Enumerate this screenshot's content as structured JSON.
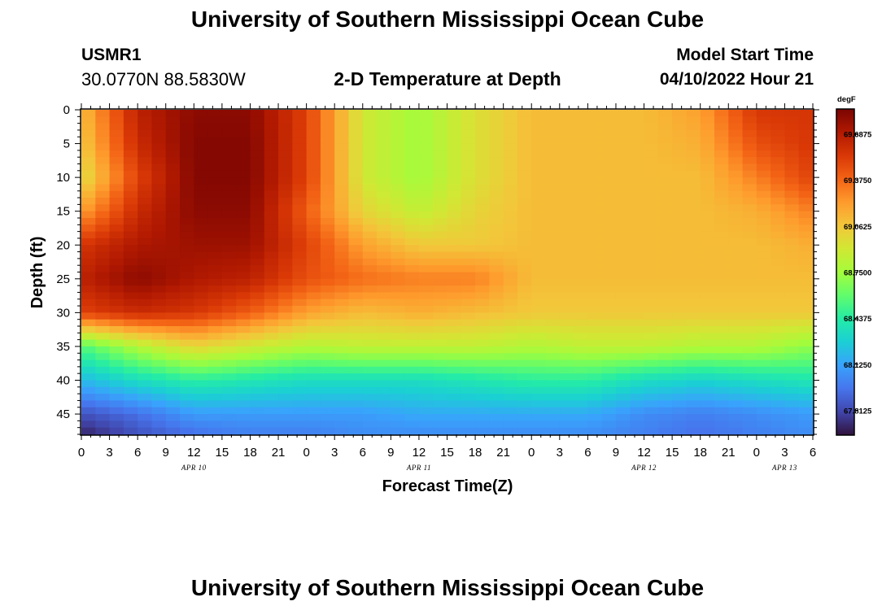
{
  "header": {
    "title": "University of Southern Mississippi Ocean Cube",
    "station": "USMR1",
    "coordinates": "30.0770N  88.5830W",
    "subtitle": "2-D Temperature at Depth",
    "start_label": "Model Start Time",
    "start_value": "04/10/2022 Hour 21"
  },
  "footer": {
    "title": "University of Southern Mississippi Ocean Cube"
  },
  "colors": {
    "background": "#ffffff",
    "text": "#000000"
  },
  "chart_data": {
    "type": "heatmap",
    "title": "2-D Temperature at Depth",
    "xlabel": "Forecast Time(Z)",
    "ylabel": "Depth (ft)",
    "x_unit": "hours since APR 10 00Z",
    "xlim": [
      0,
      78
    ],
    "ylim": [
      0,
      48
    ],
    "y_inverted": true,
    "x_ticks": [
      0,
      3,
      6,
      9,
      12,
      15,
      18,
      21,
      24,
      27,
      30,
      33,
      36,
      39,
      42,
      45,
      48,
      51,
      54,
      57,
      60,
      63,
      66,
      69,
      72,
      75,
      78
    ],
    "x_tick_labels": [
      "0",
      "3",
      "6",
      "9",
      "12",
      "15",
      "18",
      "21",
      "0",
      "3",
      "6",
      "9",
      "12",
      "15",
      "18",
      "21",
      "0",
      "3",
      "6",
      "9",
      "12",
      "15",
      "18",
      "21",
      "0",
      "3",
      "6"
    ],
    "y_ticks": [
      0,
      5,
      10,
      15,
      20,
      25,
      30,
      35,
      40,
      45
    ],
    "y_tick_labels": [
      "0",
      "5",
      "10",
      "15",
      "20",
      "25",
      "30",
      "35",
      "40",
      "45"
    ],
    "date_labels": [
      {
        "label": "APR 10",
        "x": 12
      },
      {
        "label": "APR 11",
        "x": 36
      },
      {
        "label": "APR 12",
        "x": 60
      },
      {
        "label": "APR 13",
        "x": 75
      }
    ],
    "colorbar": {
      "unit": "degF",
      "range": [
        67.65,
        69.85
      ],
      "ticks": [
        69.6875,
        69.375,
        69.0625,
        68.75,
        68.4375,
        68.125,
        67.8125
      ],
      "tick_labels": [
        "69.6875",
        "69.3750",
        "69.0625",
        "68.7500",
        "68.4375",
        "68.1250",
        "67.8125"
      ],
      "colormap": [
        "#30123b",
        "#4145ab",
        "#4675ed",
        "#39a2fc",
        "#1bcfd4",
        "#24eca6",
        "#61fc6c",
        "#a4fc3b",
        "#d1e834",
        "#f3c63a",
        "#fe9b2d",
        "#f36315",
        "#d93806",
        "#b11901",
        "#7a0402"
      ]
    },
    "x_grid": [
      0,
      6,
      12,
      18,
      24,
      30,
      36,
      42,
      48,
      54,
      60,
      66,
      72,
      78
    ],
    "y_grid": [
      0,
      5,
      10,
      15,
      20,
      25,
      30,
      35,
      40,
      45,
      48
    ],
    "temperature_grid": [
      [
        69.1,
        69.65,
        69.8,
        69.8,
        69.5,
        68.9,
        68.75,
        68.95,
        69.1,
        69.1,
        69.1,
        69.2,
        69.55,
        69.55
      ],
      [
        69.05,
        69.6,
        69.82,
        69.82,
        69.5,
        68.9,
        68.75,
        68.95,
        69.1,
        69.1,
        69.1,
        69.15,
        69.45,
        69.55
      ],
      [
        68.95,
        69.5,
        69.82,
        69.82,
        69.5,
        68.9,
        68.75,
        68.95,
        69.1,
        69.1,
        69.1,
        69.1,
        69.3,
        69.5
      ],
      [
        69.2,
        69.6,
        69.8,
        69.8,
        69.4,
        69.0,
        68.85,
        69.0,
        69.1,
        69.1,
        69.1,
        69.1,
        69.15,
        69.3
      ],
      [
        69.55,
        69.7,
        69.75,
        69.75,
        69.5,
        69.2,
        69.05,
        69.05,
        69.1,
        69.1,
        69.1,
        69.1,
        69.1,
        69.15
      ],
      [
        69.65,
        69.8,
        69.7,
        69.65,
        69.45,
        69.35,
        69.3,
        69.3,
        69.1,
        69.1,
        69.1,
        69.1,
        69.1,
        69.1
      ],
      [
        69.5,
        69.6,
        69.55,
        69.4,
        69.2,
        69.1,
        69.15,
        69.1,
        69.05,
        69.05,
        69.05,
        69.05,
        69.05,
        69.05
      ],
      [
        68.55,
        68.8,
        69.0,
        68.9,
        68.8,
        68.85,
        68.85,
        68.85,
        68.8,
        68.85,
        68.85,
        68.8,
        68.8,
        68.7
      ],
      [
        68.2,
        68.35,
        68.45,
        68.4,
        68.35,
        68.35,
        68.35,
        68.4,
        68.45,
        68.45,
        68.35,
        68.3,
        68.35,
        68.4
      ],
      [
        67.85,
        67.95,
        68.1,
        68.1,
        68.1,
        68.1,
        68.15,
        68.15,
        68.15,
        68.15,
        68.05,
        68.0,
        68.05,
        68.1
      ],
      [
        67.7,
        67.85,
        67.95,
        68.0,
        68.0,
        68.05,
        68.05,
        68.05,
        68.05,
        68.05,
        68.0,
        67.95,
        68.0,
        68.05
      ]
    ]
  }
}
